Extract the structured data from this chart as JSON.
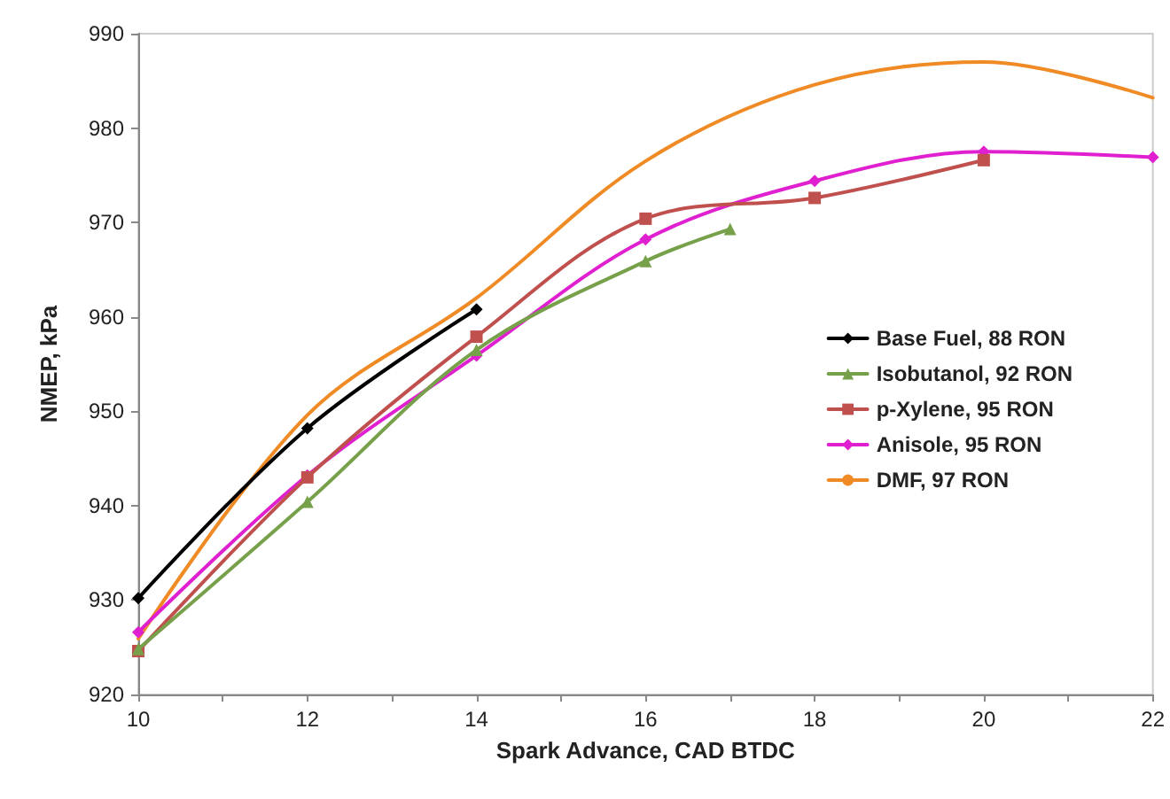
{
  "chart_data": {
    "type": "line",
    "xlabel": "Spark Advance, CAD BTDC",
    "ylabel": "NMEP, kPa",
    "xlim": [
      10,
      22
    ],
    "xticks": [
      10,
      {
        "value": 11,
        "label": null
      },
      12,
      {
        "value": 13,
        "label": null
      },
      14,
      {
        "value": 15,
        "label": null
      },
      16,
      {
        "value": 17,
        "label": null
      },
      18,
      {
        "value": 19,
        "label": null
      },
      20,
      {
        "value": 21,
        "label": null
      },
      22
    ],
    "ylim": [
      920,
      990
    ],
    "yticks": [
      920,
      930,
      940,
      950,
      960,
      970,
      980,
      990
    ],
    "grid": false,
    "legend": "right",
    "series": [
      {
        "name": "Base Fuel, 88 RON",
        "color": "#000000",
        "marker": "diamond",
        "x": [
          10,
          12,
          14
        ],
        "values": [
          930.2,
          948.2,
          960.8
        ]
      },
      {
        "name": "Isobutanol, 92 RON",
        "color": "#77a04a",
        "marker": "triangle",
        "x": [
          10,
          12,
          14,
          16,
          17
        ],
        "values": [
          924.8,
          940.4,
          956.5,
          965.9,
          969.3
        ]
      },
      {
        "name": "p-Xylene, 95 RON",
        "color": "#c0504d",
        "marker": "square",
        "x": [
          10,
          12,
          14,
          16,
          18,
          20
        ],
        "values": [
          924.6,
          943.0,
          957.9,
          970.4,
          972.6,
          976.6
        ]
      },
      {
        "name": "Anisole, 95 RON",
        "color": "#e020d0",
        "marker": "diamond",
        "x": [
          10,
          12,
          14,
          16,
          18,
          20,
          22
        ],
        "values": [
          926.6,
          943.2,
          955.9,
          968.2,
          974.4,
          977.5,
          976.9
        ]
      },
      {
        "name": "DMF, 97 RON",
        "color": "#f08a24",
        "marker": "none",
        "x": [
          10,
          12,
          14,
          16,
          18,
          20,
          22
        ],
        "values": [
          925.9,
          949.6,
          962.0,
          976.5,
          984.6,
          987.0,
          983.2
        ]
      }
    ]
  }
}
